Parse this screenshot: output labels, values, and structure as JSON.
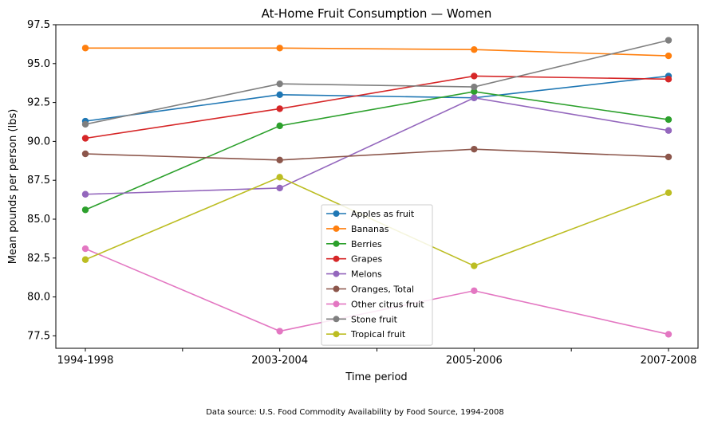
{
  "chart_data": {
    "type": "line",
    "title": "At-Home Fruit Consumption — Women",
    "xlabel": "Time period",
    "ylabel": "Mean pounds per person (lbs)",
    "categories": [
      "1994-1998",
      "2003-2004",
      "2005-2006",
      "2007-2008"
    ],
    "ylim": [
      76.7,
      97.5
    ],
    "yticks": [
      "77.5",
      "80.0",
      "82.5",
      "85.0",
      "87.5",
      "90.0",
      "92.5",
      "95.0",
      "97.5"
    ],
    "grid": false,
    "legend_position": "lower-center",
    "series": [
      {
        "name": "Apples as fruit",
        "color": "#1f77b4",
        "values": [
          91.3,
          93.0,
          92.8,
          94.2
        ]
      },
      {
        "name": "Bananas",
        "color": "#ff7f0e",
        "values": [
          96.0,
          96.0,
          95.9,
          95.5
        ]
      },
      {
        "name": "Berries",
        "color": "#2ca02c",
        "values": [
          85.6,
          91.0,
          93.2,
          91.4
        ]
      },
      {
        "name": "Grapes",
        "color": "#d62728",
        "values": [
          90.2,
          92.1,
          94.2,
          94.0
        ]
      },
      {
        "name": "Melons",
        "color": "#9467bd",
        "values": [
          86.6,
          87.0,
          92.8,
          90.7
        ]
      },
      {
        "name": "Oranges, Total",
        "color": "#8c564b",
        "values": [
          89.2,
          88.8,
          89.5,
          89.0
        ]
      },
      {
        "name": "Other citrus fruit",
        "color": "#e377c2",
        "values": [
          83.1,
          77.8,
          80.4,
          77.6
        ]
      },
      {
        "name": "Stone fruit",
        "color": "#7f7f7f",
        "values": [
          91.1,
          93.7,
          93.5,
          96.5
        ]
      },
      {
        "name": "Tropical fruit",
        "color": "#bcbd22",
        "values": [
          82.4,
          87.7,
          82.0,
          86.7
        ]
      }
    ]
  },
  "source_note": "Data source: U.S. Food Commodity Availability by Food Source, 1994-2008"
}
